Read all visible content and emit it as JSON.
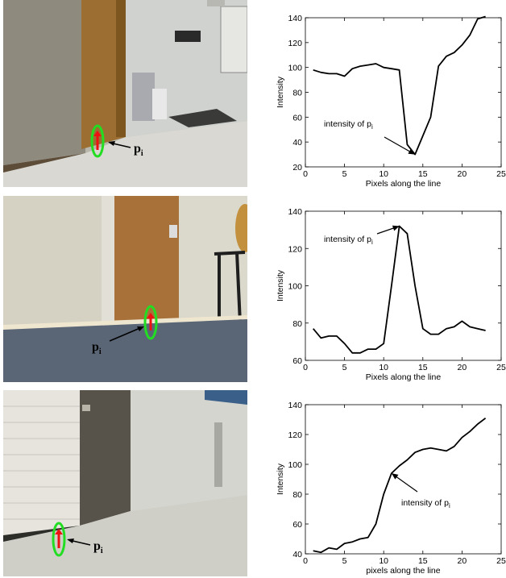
{
  "photos": [
    {
      "marker_label": "p",
      "marker_sub": "i"
    },
    {
      "marker_label": "p",
      "marker_sub": "i"
    },
    {
      "marker_label": "p",
      "marker_sub": "i"
    }
  ],
  "colors": {
    "marker_ellipse": "#22dd22",
    "marker_arrow": "#ee1111",
    "line": "#000000"
  },
  "chart_data": [
    {
      "type": "line",
      "xlabel": "Pixels along the line",
      "ylabel": "Intensity",
      "xlim": [
        0,
        25
      ],
      "ylim": [
        20,
        140
      ],
      "xticks": [
        0,
        5,
        10,
        15,
        20,
        25
      ],
      "yticks": [
        20,
        40,
        60,
        80,
        100,
        120,
        140
      ],
      "x": [
        1,
        2,
        3,
        4,
        5,
        6,
        7,
        8,
        9,
        10,
        11,
        12,
        13,
        14,
        15,
        16,
        17,
        18,
        19,
        20,
        21,
        22,
        23
      ],
      "y": [
        98,
        96,
        95,
        95,
        93,
        99,
        101,
        102,
        103,
        100,
        99,
        98,
        38,
        30,
        45,
        60,
        101,
        109,
        112,
        118,
        126,
        139,
        141
      ],
      "annotation": {
        "text": "intensity of p",
        "sub": "i",
        "x": 14,
        "y": 30
      }
    },
    {
      "type": "line",
      "xlabel": "Pixels along the line",
      "ylabel": "Intensity",
      "xlim": [
        0,
        25
      ],
      "ylim": [
        60,
        140
      ],
      "xticks": [
        0,
        5,
        10,
        15,
        20,
        25
      ],
      "yticks": [
        60,
        80,
        100,
        120,
        140
      ],
      "x": [
        1,
        2,
        3,
        4,
        5,
        6,
        7,
        8,
        9,
        10,
        11,
        12,
        13,
        14,
        15,
        16,
        17,
        18,
        19,
        20,
        21,
        22,
        23
      ],
      "y": [
        77,
        72,
        73,
        73,
        69,
        64,
        64,
        66,
        66,
        69,
        100,
        132,
        128,
        100,
        77,
        74,
        74,
        77,
        78,
        81,
        78,
        77,
        76
      ],
      "annotation": {
        "text": "intensity of p",
        "sub": "i",
        "x": 12,
        "y": 132
      }
    },
    {
      "type": "line",
      "xlabel": "pixels along the line",
      "ylabel": "Intensity",
      "xlim": [
        0,
        25
      ],
      "ylim": [
        40,
        140
      ],
      "xticks": [
        0,
        5,
        10,
        15,
        20,
        25
      ],
      "yticks": [
        40,
        60,
        80,
        100,
        120,
        140
      ],
      "x": [
        1,
        2,
        3,
        4,
        5,
        6,
        7,
        8,
        9,
        10,
        11,
        12,
        13,
        14,
        15,
        16,
        17,
        18,
        19,
        20,
        21,
        22,
        23
      ],
      "y": [
        42,
        41,
        44,
        43,
        47,
        48,
        50,
        51,
        60,
        80,
        94,
        99,
        103,
        108,
        110,
        111,
        110,
        109,
        112,
        118,
        122,
        127,
        131
      ],
      "annotation": {
        "text": "intensity of p",
        "sub": "i",
        "x": 11,
        "y": 94
      }
    }
  ]
}
